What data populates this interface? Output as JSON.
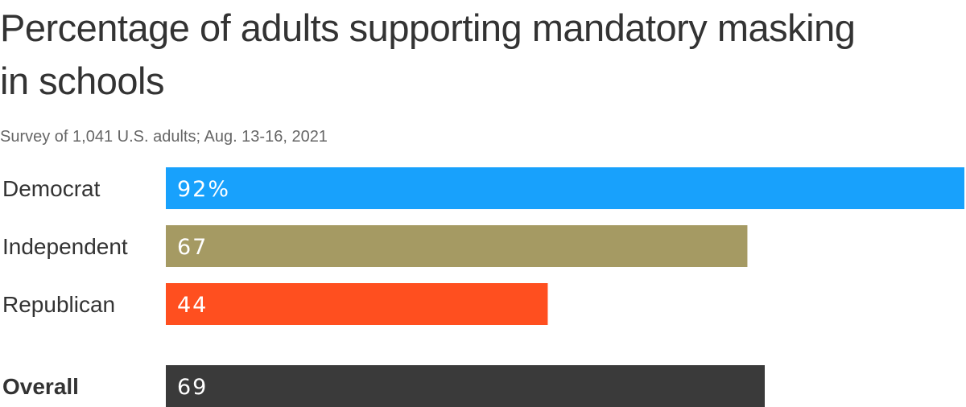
{
  "chart_data": {
    "type": "bar",
    "orientation": "horizontal",
    "title": "Percentage of adults supporting mandatory masking in schools",
    "subtitle": "Survey of 1,041 U.S. adults; Aug. 13-16, 2021",
    "categories": [
      "Democrat",
      "Independent",
      "Republican",
      "Overall"
    ],
    "values": [
      92,
      67,
      44,
      69
    ],
    "value_labels": [
      "92%",
      "67",
      "44",
      "69"
    ],
    "colors": [
      "#18a1fc",
      "#a59a63",
      "#ff4f1f",
      "#3a3a3a"
    ],
    "bold_categories": [
      "Overall"
    ],
    "xlim": [
      0,
      92
    ],
    "grid": false,
    "legend": "none"
  }
}
